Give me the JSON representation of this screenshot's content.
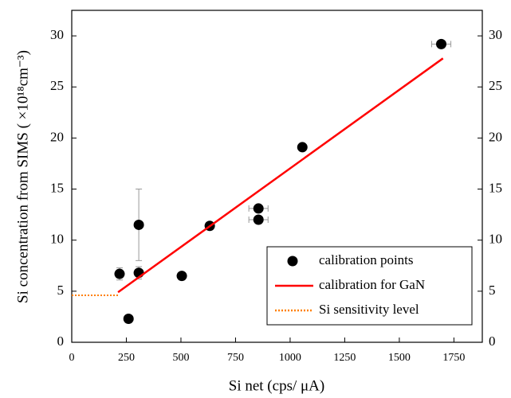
{
  "chart_data": {
    "type": "scatter",
    "xlabel": "Si net (cps/ μA)",
    "ylabel": "Si concentration from SIMS ( ×10¹⁸cm⁻³)",
    "xlim": [
      0,
      1880
    ],
    "ylim": [
      0,
      32.5
    ],
    "xticks": [
      0,
      250,
      500,
      750,
      1000,
      1250,
      1500,
      1750
    ],
    "yticks": [
      0,
      5,
      10,
      15,
      20,
      25,
      30
    ],
    "legend": "lower right",
    "series": [
      {
        "name": "calibration points",
        "type": "scatter",
        "color": "#000000",
        "x": [
          219,
          260,
          307,
          307,
          504,
          632,
          855,
          855,
          1056,
          1692
        ],
        "values": [
          6.7,
          2.3,
          6.8,
          11.5,
          6.5,
          11.4,
          13.1,
          12.0,
          19.1,
          29.2
        ],
        "xerr": [
          null,
          null,
          null,
          null,
          null,
          null,
          44,
          44,
          null,
          44
        ],
        "yerr": [
          0.6,
          null,
          0.6,
          3.5,
          null,
          null,
          null,
          null,
          null,
          null
        ]
      },
      {
        "name": "calibration for GaN",
        "type": "line",
        "color": "#ff0000",
        "x": [
          212,
          1700
        ],
        "values": [
          4.9,
          27.8
        ]
      },
      {
        "name": "Si sensitivity level",
        "type": "line",
        "style": "dotted",
        "color": "#ff8000",
        "x": [
          0,
          212
        ],
        "values": [
          4.6,
          4.6
        ]
      }
    ]
  }
}
